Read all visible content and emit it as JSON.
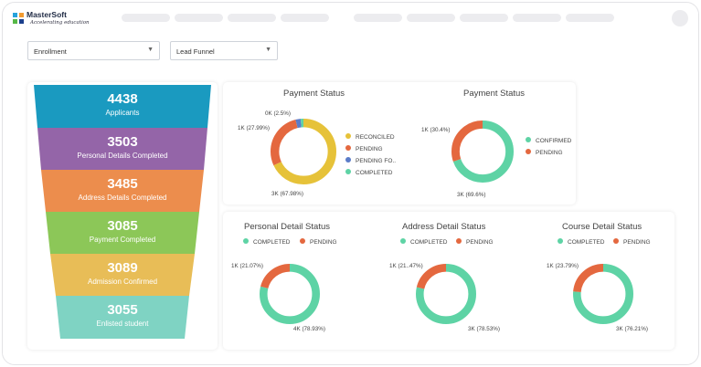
{
  "brand": {
    "name": "MasterSoft",
    "tagline": "Accelerating education"
  },
  "filters": {
    "primary": "Enrollment",
    "secondary": "Lead Funnel"
  },
  "funnel": [
    {
      "value": "4438",
      "label": "Applicants",
      "color": "#1a9ac0"
    },
    {
      "value": "3503",
      "label": "Personal Details Completed",
      "color": "#9465a8"
    },
    {
      "value": "3485",
      "label": "Address Details Completed",
      "color": "#ec8d4d"
    },
    {
      "value": "3085",
      "label": "Payment Completed",
      "color": "#8cc758"
    },
    {
      "value": "3089",
      "label": "Admission Confirmed",
      "color": "#e8bd57"
    },
    {
      "value": "3055",
      "label": "Enlisted student",
      "color": "#7fd3c3"
    }
  ],
  "colors": {
    "reconciled": "#e6c239",
    "pending": "#e4683f",
    "pending_fo": "#5b7cc8",
    "completed": "#5ed3a5",
    "confirmed": "#5ed3a5"
  },
  "charts": {
    "payment1": {
      "title": "Payment Status",
      "slices": [
        {
          "name": "RECONCILED",
          "fraction": 0.6798,
          "color": "#e6c239"
        },
        {
          "name": "PENDING",
          "fraction": 0.2799,
          "color": "#e4683f"
        },
        {
          "name": "PENDING FO..",
          "fraction": 0.025,
          "color": "#5b7cc8"
        },
        {
          "name": "COMPLETED",
          "fraction": 0.015,
          "color": "#5ed3a5"
        }
      ],
      "labels": [
        "0K (2.5%)",
        "1K (27.99%)",
        "3K (67.98%)"
      ],
      "legend": [
        "RECONCILED",
        "PENDING",
        "PENDING FO..",
        "COMPLETED"
      ]
    },
    "payment2": {
      "title": "Payment Status",
      "slices": [
        {
          "name": "CONFIRMED",
          "fraction": 0.696,
          "color": "#5ed3a5"
        },
        {
          "name": "PENDING",
          "fraction": 0.304,
          "color": "#e4683f"
        }
      ],
      "labels": [
        "1K (30.4%)",
        "3K (69.6%)"
      ],
      "legend": [
        "CONFIRMED",
        "PENDING"
      ]
    },
    "personal": {
      "title": "Personal Detail Status",
      "slices": [
        {
          "name": "COMPLETED",
          "fraction": 0.7893,
          "color": "#5ed3a5"
        },
        {
          "name": "PENDING",
          "fraction": 0.2107,
          "color": "#e4683f"
        }
      ],
      "labels": [
        "1K (21.07%)",
        "4K (78.93%)"
      ],
      "legend": [
        "COMPLETED",
        "PENDING"
      ]
    },
    "address": {
      "title": "Address Detail Status",
      "slices": [
        {
          "name": "COMPLETED",
          "fraction": 0.7853,
          "color": "#5ed3a5"
        },
        {
          "name": "PENDING",
          "fraction": 0.2147,
          "color": "#e4683f"
        }
      ],
      "labels": [
        "1K (21..47%)",
        "3K (78.53%)"
      ],
      "legend": [
        "COMPLETED",
        "PENDING"
      ]
    },
    "course": {
      "title": "Course Detail Status",
      "slices": [
        {
          "name": "COMPLETED",
          "fraction": 0.7621,
          "color": "#5ed3a5"
        },
        {
          "name": "PENDING",
          "fraction": 0.2379,
          "color": "#e4683f"
        }
      ],
      "labels": [
        "1K (23.79%)",
        "3K (76.21%)"
      ],
      "legend": [
        "COMPLETED",
        "PENDING"
      ]
    }
  }
}
